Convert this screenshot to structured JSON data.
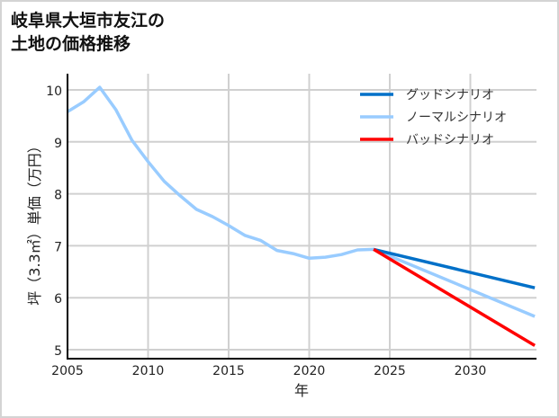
{
  "title_line1": "岐阜県大垣市友江の",
  "title_line2": "土地の価格推移",
  "chart_data": {
    "type": "line",
    "title": "岐阜県大垣市友江の土地の価格推移",
    "xlabel": "年",
    "ylabel": "坪（3.3㎡）単価（万円）",
    "xlim": [
      2005,
      2034
    ],
    "ylim": [
      4.8,
      10.3
    ],
    "x_ticks": [
      2005,
      2010,
      2015,
      2020,
      2025,
      2030
    ],
    "y_ticks": [
      5,
      6,
      7,
      8,
      9,
      10
    ],
    "grid": true,
    "legend_position": "upper right",
    "series": [
      {
        "name": "グッドシナリオ",
        "color": "#0070c8",
        "x": [
          2024,
          2034
        ],
        "values": [
          6.93,
          6.19
        ]
      },
      {
        "name": "ノーマルシナリオ",
        "color": "#99ccff",
        "x": [
          2005,
          2006,
          2007,
          2008,
          2009,
          2010,
          2011,
          2012,
          2013,
          2014,
          2015,
          2016,
          2017,
          2018,
          2019,
          2020,
          2021,
          2022,
          2023,
          2024,
          2034
        ],
        "values": [
          9.58,
          9.77,
          10.05,
          9.62,
          9.03,
          8.62,
          8.24,
          7.96,
          7.7,
          7.56,
          7.39,
          7.2,
          7.1,
          6.91,
          6.85,
          6.76,
          6.78,
          6.83,
          6.92,
          6.93,
          5.64
        ]
      },
      {
        "name": "バッドシナリオ",
        "color": "#ff0000",
        "x": [
          2024,
          2034
        ],
        "values": [
          6.93,
          5.08
        ]
      }
    ]
  }
}
